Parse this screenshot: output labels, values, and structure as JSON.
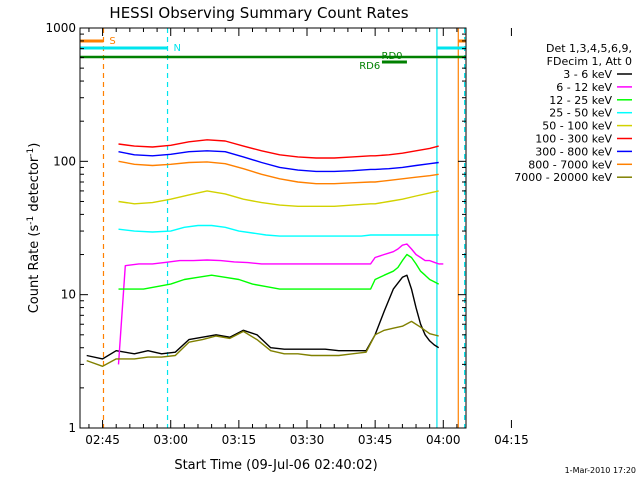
{
  "chart_data": {
    "type": "line",
    "title": "HESSI Observing Summary Count Rates",
    "xlabel": "Start Time (09-Jul-06 02:40:02)",
    "ylabel_main": "Count Rate (s",
    "ylabel_sup1": "-1",
    "ylabel_mid": " detector",
    "ylabel_sup2": "-1",
    "ylabel_end": ")",
    "yscale": "log",
    "ylim": [
      1,
      1000
    ],
    "xlim_min": [
      40.03,
      125
    ],
    "xticks": [
      "02:45",
      "03:00",
      "03:15",
      "03:30",
      "03:45",
      "04:00",
      "04:15"
    ],
    "xtick_min": [
      45,
      60,
      75,
      90,
      105,
      120,
      135
    ],
    "yticks": [
      "1",
      "10",
      "100",
      "1000"
    ],
    "yticks_val": [
      1,
      10,
      100,
      1000
    ],
    "timestamp": "1-Mar-2010 17:20",
    "legend_header": [
      "Det 1,3,4,5,6,9,",
      "FDecim 1, Att 0"
    ],
    "annotations": {
      "saa_label": "S",
      "night_label": "N",
      "rd0_label": "RD0",
      "rd6_label": "RD6"
    },
    "colors": {
      "night": "#00e5ee",
      "saa": "#ff8000",
      "rd": "#008000"
    },
    "series": [
      {
        "name": "3 - 6 keV",
        "color": "#000000",
        "points": [
          [
            41.5,
            3.5
          ],
          [
            45,
            3.3
          ],
          [
            48,
            3.8
          ],
          [
            52,
            3.6
          ],
          [
            55,
            3.8
          ],
          [
            58,
            3.6
          ],
          [
            61,
            3.7
          ],
          [
            64,
            4.6
          ],
          [
            67,
            4.8
          ],
          [
            70,
            5.0
          ],
          [
            73,
            4.8
          ],
          [
            76,
            5.4
          ],
          [
            79,
            5.0
          ],
          [
            82,
            4.0
          ],
          [
            85,
            3.9
          ],
          [
            88,
            3.9
          ],
          [
            91,
            3.9
          ],
          [
            94,
            3.9
          ],
          [
            97,
            3.8
          ],
          [
            100,
            3.8
          ],
          [
            103,
            3.8
          ],
          [
            105,
            5.0
          ],
          [
            107,
            7.5
          ],
          [
            109,
            11
          ],
          [
            111,
            13.5
          ],
          [
            112,
            14
          ],
          [
            113,
            11
          ],
          [
            114,
            8
          ],
          [
            115,
            6
          ],
          [
            116,
            5
          ],
          [
            117,
            4.5
          ],
          [
            118,
            4.2
          ],
          [
            119,
            4.0
          ]
        ]
      },
      {
        "name": "6 - 12 keV",
        "color": "#ff00ff",
        "points": [
          [
            48.5,
            3.0
          ],
          [
            50,
            16.5
          ],
          [
            53,
            17
          ],
          [
            56,
            17
          ],
          [
            59,
            17.5
          ],
          [
            62,
            18
          ],
          [
            65,
            18
          ],
          [
            68,
            18.2
          ],
          [
            71,
            18
          ],
          [
            74,
            17.6
          ],
          [
            77,
            17.4
          ],
          [
            80,
            17
          ],
          [
            83,
            17
          ],
          [
            86,
            17
          ],
          [
            89,
            17
          ],
          [
            92,
            17
          ],
          [
            95,
            17
          ],
          [
            98,
            17
          ],
          [
            101,
            17
          ],
          [
            104,
            17
          ],
          [
            105,
            19
          ],
          [
            107,
            20
          ],
          [
            109,
            21
          ],
          [
            110,
            22
          ],
          [
            111,
            23.5
          ],
          [
            112,
            24
          ],
          [
            113,
            22
          ],
          [
            114,
            20
          ],
          [
            115,
            19
          ],
          [
            116,
            18
          ],
          [
            117,
            18
          ],
          [
            118,
            17.5
          ],
          [
            119,
            17
          ],
          [
            120,
            17
          ]
        ]
      },
      {
        "name": "12 - 25 keV",
        "color": "#00ff00",
        "points": [
          [
            48.5,
            11
          ],
          [
            51,
            11
          ],
          [
            54,
            11
          ],
          [
            57,
            11.5
          ],
          [
            60,
            12
          ],
          [
            63,
            13
          ],
          [
            66,
            13.5
          ],
          [
            69,
            14
          ],
          [
            72,
            13.5
          ],
          [
            75,
            13
          ],
          [
            78,
            12
          ],
          [
            81,
            11.5
          ],
          [
            84,
            11
          ],
          [
            87,
            11
          ],
          [
            90,
            11
          ],
          [
            93,
            11
          ],
          [
            96,
            11
          ],
          [
            99,
            11
          ],
          [
            102,
            11
          ],
          [
            104,
            11
          ],
          [
            105,
            13
          ],
          [
            107,
            14
          ],
          [
            109,
            15
          ],
          [
            110,
            16
          ],
          [
            111,
            18
          ],
          [
            112,
            20
          ],
          [
            113,
            19
          ],
          [
            114,
            17
          ],
          [
            115,
            15
          ],
          [
            116,
            14
          ],
          [
            117,
            13
          ],
          [
            118,
            12.5
          ],
          [
            119,
            12
          ]
        ]
      },
      {
        "name": "25 - 50 keV",
        "color": "#00ffff",
        "points": [
          [
            48.5,
            31
          ],
          [
            52,
            30
          ],
          [
            56,
            29.5
          ],
          [
            60,
            30
          ],
          [
            63,
            32
          ],
          [
            66,
            33
          ],
          [
            69,
            33
          ],
          [
            72,
            32
          ],
          [
            75,
            30
          ],
          [
            78,
            29
          ],
          [
            81,
            28
          ],
          [
            84,
            27.5
          ],
          [
            87,
            27.5
          ],
          [
            90,
            27.5
          ],
          [
            93,
            27.5
          ],
          [
            96,
            27.5
          ],
          [
            99,
            27.5
          ],
          [
            102,
            27.5
          ],
          [
            104,
            28
          ],
          [
            105,
            28
          ],
          [
            108,
            28
          ],
          [
            111,
            28
          ],
          [
            114,
            28
          ],
          [
            117,
            28
          ],
          [
            119,
            28
          ]
        ]
      },
      {
        "name": "50 - 100 keV",
        "color": "#d2d200",
        "points": [
          [
            48.5,
            50
          ],
          [
            52,
            48
          ],
          [
            56,
            49
          ],
          [
            60,
            52
          ],
          [
            64,
            56
          ],
          [
            68,
            60
          ],
          [
            72,
            57
          ],
          [
            76,
            52
          ],
          [
            80,
            49
          ],
          [
            84,
            47
          ],
          [
            88,
            46
          ],
          [
            92,
            46
          ],
          [
            96,
            46
          ],
          [
            100,
            47
          ],
          [
            104,
            48
          ],
          [
            105,
            48
          ],
          [
            108,
            50
          ],
          [
            111,
            52
          ],
          [
            114,
            55
          ],
          [
            117,
            58
          ],
          [
            119,
            60
          ]
        ]
      },
      {
        "name": "100 - 300 keV",
        "color": "#ff0000",
        "points": [
          [
            48.5,
            135
          ],
          [
            52,
            130
          ],
          [
            56,
            128
          ],
          [
            60,
            132
          ],
          [
            64,
            140
          ],
          [
            68,
            145
          ],
          [
            72,
            142
          ],
          [
            76,
            130
          ],
          [
            80,
            120
          ],
          [
            84,
            112
          ],
          [
            88,
            108
          ],
          [
            92,
            106
          ],
          [
            96,
            106
          ],
          [
            100,
            108
          ],
          [
            104,
            110
          ],
          [
            105,
            110
          ],
          [
            108,
            112
          ],
          [
            111,
            115
          ],
          [
            114,
            120
          ],
          [
            117,
            125
          ],
          [
            119,
            130
          ]
        ]
      },
      {
        "name": "300 - 800 keV",
        "color": "#0000ff",
        "points": [
          [
            48.5,
            118
          ],
          [
            52,
            112
          ],
          [
            56,
            110
          ],
          [
            60,
            113
          ],
          [
            64,
            118
          ],
          [
            68,
            120
          ],
          [
            72,
            118
          ],
          [
            76,
            108
          ],
          [
            80,
            98
          ],
          [
            84,
            90
          ],
          [
            88,
            86
          ],
          [
            92,
            84
          ],
          [
            96,
            84
          ],
          [
            100,
            85
          ],
          [
            104,
            87
          ],
          [
            105,
            87
          ],
          [
            108,
            88
          ],
          [
            111,
            90
          ],
          [
            114,
            93
          ],
          [
            117,
            96
          ],
          [
            119,
            98
          ]
        ]
      },
      {
        "name": "800 - 7000 keV",
        "color": "#ff8000",
        "points": [
          [
            48.5,
            100
          ],
          [
            52,
            95
          ],
          [
            56,
            93
          ],
          [
            60,
            95
          ],
          [
            64,
            98
          ],
          [
            68,
            99
          ],
          [
            72,
            96
          ],
          [
            76,
            88
          ],
          [
            80,
            80
          ],
          [
            84,
            74
          ],
          [
            88,
            70
          ],
          [
            92,
            68
          ],
          [
            96,
            68
          ],
          [
            100,
            69
          ],
          [
            104,
            70
          ],
          [
            105,
            70
          ],
          [
            108,
            72
          ],
          [
            111,
            74
          ],
          [
            114,
            76
          ],
          [
            117,
            78
          ],
          [
            119,
            80
          ]
        ]
      },
      {
        "name": "7000 - 20000 keV",
        "color": "#808000",
        "points": [
          [
            41.5,
            3.2
          ],
          [
            45,
            2.9
          ],
          [
            48,
            3.3
          ],
          [
            52,
            3.3
          ],
          [
            55,
            3.4
          ],
          [
            58,
            3.4
          ],
          [
            61,
            3.5
          ],
          [
            64,
            4.4
          ],
          [
            67,
            4.6
          ],
          [
            70,
            4.9
          ],
          [
            73,
            4.7
          ],
          [
            76,
            5.3
          ],
          [
            79,
            4.6
          ],
          [
            82,
            3.8
          ],
          [
            85,
            3.6
          ],
          [
            88,
            3.6
          ],
          [
            91,
            3.5
          ],
          [
            94,
            3.5
          ],
          [
            97,
            3.5
          ],
          [
            100,
            3.6
          ],
          [
            103,
            3.7
          ],
          [
            105,
            5.0
          ],
          [
            107,
            5.4
          ],
          [
            109,
            5.6
          ],
          [
            111,
            5.8
          ],
          [
            113,
            6.3
          ],
          [
            115,
            5.7
          ],
          [
            117,
            5.1
          ],
          [
            119,
            4.9
          ]
        ]
      }
    ]
  }
}
